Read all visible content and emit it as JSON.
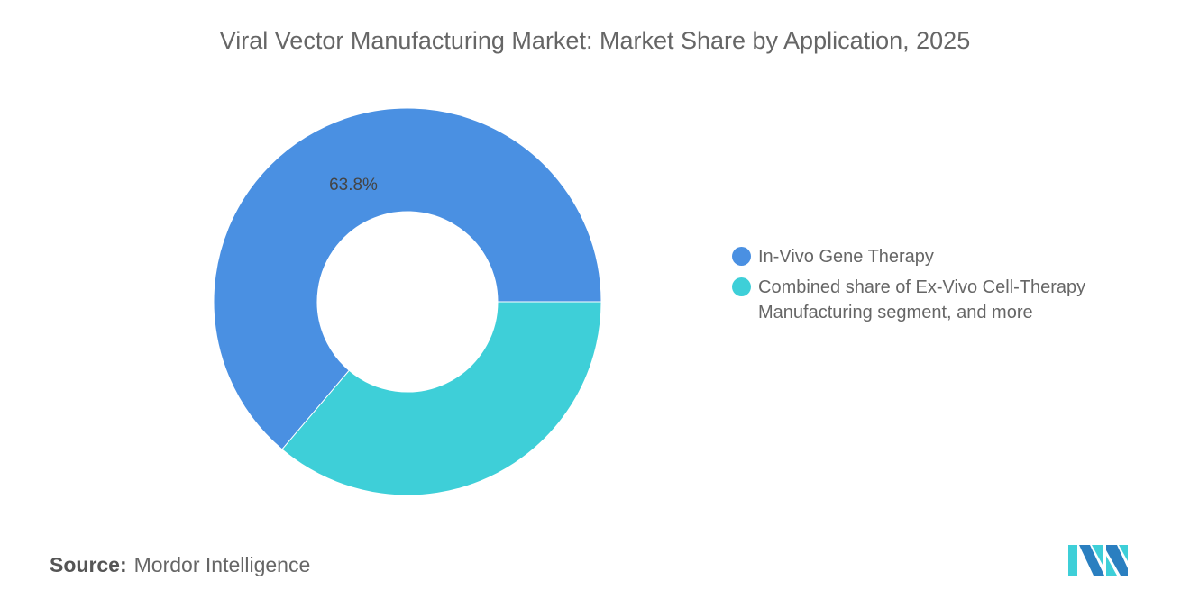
{
  "chart_data": {
    "type": "pie",
    "style": "donut",
    "title": "Viral Vector Manufacturing Market: Market Share by Application, 2025",
    "categories": [
      "In-Vivo Gene Therapy",
      "Combined share of Ex-Vivo Cell-Therapy Manufacturing segment, and more"
    ],
    "values": [
      63.8,
      36.2
    ],
    "data_labels": [
      "63.8%",
      ""
    ],
    "colors": [
      "#4a90e2",
      "#3ecfd8"
    ],
    "legend_position": "right"
  },
  "source": {
    "label": "Source:",
    "value": "Mordor Intelligence"
  },
  "logo": {
    "text": "Mordor Intelligence",
    "colors": [
      "#2a7fc0",
      "#3ecfd8"
    ]
  }
}
